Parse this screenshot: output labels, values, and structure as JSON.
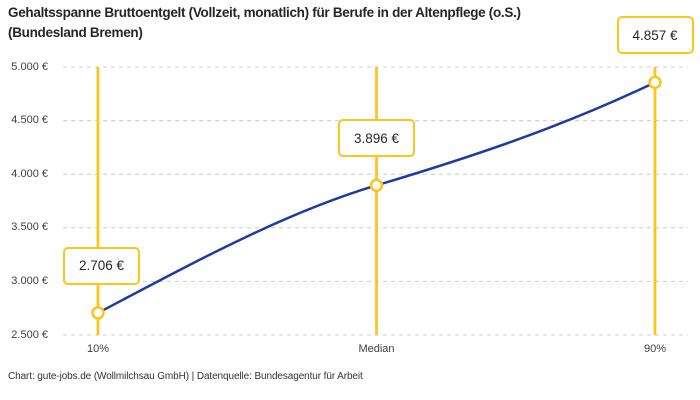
{
  "title": {
    "line1": "Gehaltsspanne Bruttoentgelt (Vollzeit, monatlich) für Berufe in der Altenpflege (o.S.)",
    "line2": "(Bundesland Bremen)"
  },
  "footer": "Chart: gute-jobs.de (Wollmilchsau GmbH) | Datenquelle: Bundesagentur für Arbeit",
  "colors": {
    "accent_yellow": "#FCC41D",
    "line_blue": "#1E3CA0",
    "grid_gray": "#CCCCCC"
  },
  "chart_data": {
    "type": "line",
    "title": "Gehaltsspanne Bruttoentgelt (Vollzeit, monatlich) für Berufe in der Altenpflege (o.S.) (Bundesland Bremen)",
    "categories": [
      "10%",
      "Median",
      "90%"
    ],
    "values": [
      2706,
      3896,
      4857
    ],
    "point_labels": [
      "2.706 €",
      "3.896 €",
      "4.857 €"
    ],
    "xlabel": "",
    "ylabel": "",
    "ylim": [
      2500,
      5000
    ],
    "ytick_step": 500,
    "ytick_labels": [
      "2.500 €",
      "3.000 €",
      "3.500 €",
      "4.000 €",
      "4.500 €",
      "5.000 €"
    ],
    "grid": "horizontal-dashed",
    "legend": "none",
    "line_style": "smooth",
    "marker_style": "open-circle"
  }
}
